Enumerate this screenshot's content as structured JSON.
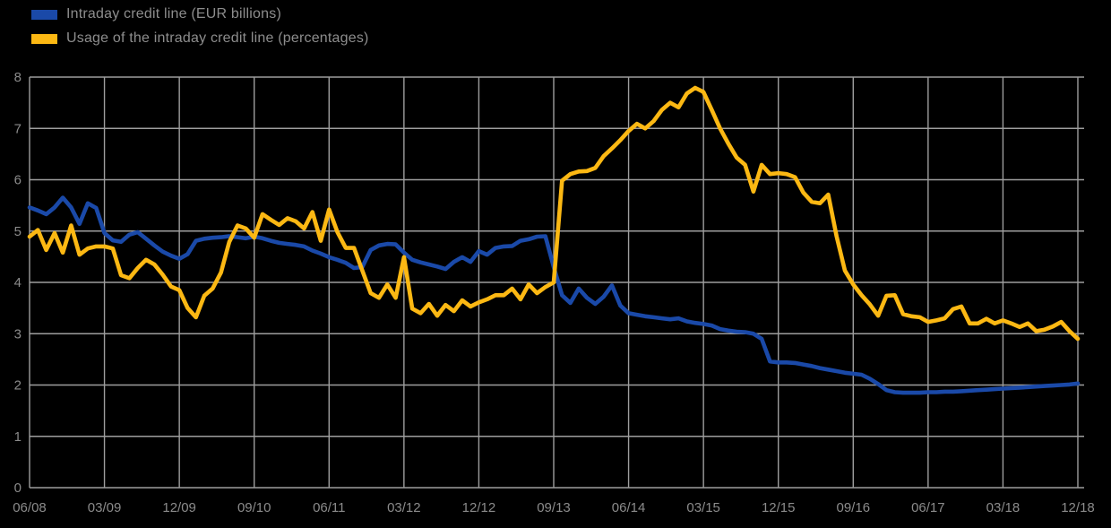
{
  "legend": {
    "items": [
      {
        "label": "Intraday credit line (EUR billions)",
        "color": "#1A49A8"
      },
      {
        "label": "Usage of the intraday credit line (percentages)",
        "color": "#FCB813"
      }
    ]
  },
  "chart_data": {
    "type": "line",
    "title": "",
    "x_interval": "monthly",
    "x_start": "06/2008",
    "x_end": "12/2018",
    "x_tick_labels": [
      "06/08",
      "03/09",
      "12/09",
      "09/10",
      "06/11",
      "03/12",
      "12/12",
      "09/13",
      "06/14",
      "03/15",
      "12/15",
      "09/16",
      "06/17",
      "03/18",
      "12/18"
    ],
    "x_tick_step_months": 9,
    "y_tick_labels": [
      "0",
      "1",
      "2",
      "3",
      "4",
      "5",
      "6",
      "7",
      "8"
    ],
    "ylim": [
      0,
      8
    ],
    "grid": true,
    "legend_position": "top-left",
    "background_color": "#000000",
    "grid_color": "#9E9E9E",
    "axis_text_color": "#8B8B8B",
    "series": [
      {
        "name": "Intraday credit line (EUR billions)",
        "color": "#1A49A8",
        "values": [
          5.46,
          5.4,
          5.33,
          5.46,
          5.65,
          5.46,
          5.14,
          5.54,
          5.45,
          4.96,
          4.82,
          4.79,
          4.93,
          4.98,
          4.85,
          4.72,
          4.6,
          4.52,
          4.46,
          4.55,
          4.81,
          4.85,
          4.87,
          4.88,
          4.9,
          4.88,
          4.86,
          4.89,
          4.86,
          4.81,
          4.77,
          4.75,
          4.73,
          4.7,
          4.62,
          4.56,
          4.49,
          4.44,
          4.38,
          4.28,
          4.3,
          4.63,
          4.72,
          4.75,
          4.74,
          4.58,
          4.44,
          4.39,
          4.35,
          4.31,
          4.26,
          4.4,
          4.49,
          4.4,
          4.61,
          4.54,
          4.67,
          4.7,
          4.71,
          4.81,
          4.84,
          4.89,
          4.9,
          4.3,
          3.75,
          3.6,
          3.88,
          3.7,
          3.58,
          3.72,
          3.94,
          3.55,
          3.4,
          3.37,
          3.34,
          3.32,
          3.3,
          3.28,
          3.3,
          3.24,
          3.21,
          3.19,
          3.16,
          3.09,
          3.06,
          3.04,
          3.03,
          3.0,
          2.9,
          2.46,
          2.44,
          2.44,
          2.43,
          2.4,
          2.37,
          2.33,
          2.3,
          2.27,
          2.24,
          2.22,
          2.2,
          2.12,
          2.02,
          1.9,
          1.86,
          1.85,
          1.85,
          1.85,
          1.86,
          1.86,
          1.87,
          1.87,
          1.88,
          1.89,
          1.9,
          1.91,
          1.92,
          1.93,
          1.94,
          1.95,
          1.96,
          1.97,
          1.98,
          1.99,
          2.0,
          2.01,
          2.03
        ]
      },
      {
        "name": "Usage of the intraday credit line (percentages)",
        "color": "#FCB813",
        "values": [
          4.89,
          5.02,
          4.63,
          4.96,
          4.58,
          5.11,
          4.54,
          4.66,
          4.7,
          4.7,
          4.66,
          4.14,
          4.08,
          4.28,
          4.44,
          4.35,
          4.15,
          3.92,
          3.85,
          3.5,
          3.32,
          3.74,
          3.88,
          4.19,
          4.79,
          5.11,
          5.05,
          4.87,
          5.33,
          5.22,
          5.12,
          5.25,
          5.19,
          5.05,
          5.37,
          4.81,
          5.42,
          4.98,
          4.67,
          4.67,
          4.23,
          3.79,
          3.7,
          3.96,
          3.7,
          4.49,
          3.49,
          3.4,
          3.58,
          3.35,
          3.56,
          3.44,
          3.65,
          3.53,
          3.61,
          3.67,
          3.75,
          3.75,
          3.88,
          3.67,
          3.96,
          3.79,
          3.91,
          4.0,
          5.98,
          6.11,
          6.16,
          6.17,
          6.23,
          6.46,
          6.61,
          6.77,
          6.95,
          7.09,
          7.0,
          7.14,
          7.36,
          7.5,
          7.41,
          7.68,
          7.79,
          7.71,
          7.36,
          7.0,
          6.7,
          6.43,
          6.29,
          5.77,
          6.29,
          6.11,
          6.13,
          6.11,
          6.05,
          5.75,
          5.57,
          5.54,
          5.71,
          4.9,
          4.23,
          3.96,
          3.75,
          3.57,
          3.35,
          3.74,
          3.75,
          3.38,
          3.34,
          3.32,
          3.23,
          3.26,
          3.3,
          3.48,
          3.53,
          3.2,
          3.2,
          3.29,
          3.2,
          3.26,
          3.2,
          3.13,
          3.2,
          3.05,
          3.08,
          3.14,
          3.23,
          3.05,
          2.9
        ]
      }
    ]
  }
}
